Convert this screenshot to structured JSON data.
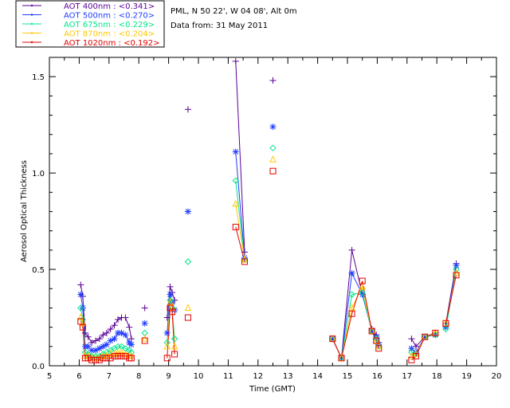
{
  "header": {
    "site": "PML, N 50 22', W 04 08', Alt 0m",
    "date": "Data from: 31 May 2011"
  },
  "chart_data": {
    "type": "scatter",
    "xlabel": "Time (GMT)",
    "ylabel": "Aerosol Optical Thickness",
    "xlim": [
      5,
      20
    ],
    "ylim": [
      0,
      1.6
    ],
    "xticks": [
      "5",
      "6",
      "7",
      "8",
      "9",
      "10",
      "11",
      "12",
      "13",
      "14",
      "15",
      "16",
      "17",
      "18",
      "19",
      "20"
    ],
    "yticks": [
      "0.0",
      "0.5",
      "1.0",
      "1.5"
    ],
    "grid": false,
    "legend_position": "top-left-outside",
    "series": [
      {
        "name": "AOT 400nm",
        "legend": "AOT  400nm : <0.341>",
        "color": "#5a0096",
        "marker": "plus",
        "x": [
          6.05,
          6.12,
          6.2,
          6.3,
          6.42,
          6.55,
          6.68,
          6.8,
          6.92,
          7.05,
          7.18,
          7.3,
          7.42,
          7.55,
          7.68,
          7.75,
          8.2,
          8.95,
          9.05,
          9.12,
          9.2,
          9.65,
          11.25,
          11.55,
          12.5,
          14.5,
          14.8,
          15.15,
          15.5,
          15.82,
          15.97,
          16.05,
          17.15,
          17.3,
          17.6,
          17.95,
          18.3,
          18.65
        ],
        "y": [
          0.42,
          0.36,
          0.17,
          0.15,
          0.12,
          0.13,
          0.14,
          0.16,
          0.17,
          0.19,
          0.21,
          0.24,
          0.25,
          0.25,
          0.2,
          0.14,
          0.3,
          0.25,
          0.41,
          0.38,
          0.34,
          1.33,
          1.58,
          0.59,
          1.48,
          0.14,
          0.04,
          0.6,
          0.37,
          0.19,
          0.16,
          0.12,
          0.14,
          0.1,
          0.15,
          0.17,
          0.22,
          0.53
        ]
      },
      {
        "name": "AOT 500nm",
        "legend": "AOT  500nm : <0.270>",
        "color": "#1e3cff",
        "marker": "asterisk",
        "x": [
          6.05,
          6.12,
          6.2,
          6.3,
          6.42,
          6.55,
          6.68,
          6.8,
          6.92,
          7.05,
          7.18,
          7.3,
          7.42,
          7.55,
          7.68,
          7.75,
          8.2,
          8.95,
          9.05,
          9.12,
          9.2,
          9.65,
          11.25,
          11.55,
          12.5,
          14.5,
          14.8,
          15.15,
          15.5,
          15.82,
          15.97,
          16.05,
          17.15,
          17.3,
          17.6,
          17.95,
          18.3,
          18.65
        ],
        "y": [
          0.37,
          0.3,
          0.1,
          0.1,
          0.08,
          0.08,
          0.09,
          0.1,
          0.11,
          0.13,
          0.14,
          0.17,
          0.17,
          0.16,
          0.12,
          0.11,
          0.22,
          0.17,
          0.37,
          0.33,
          0.29,
          0.8,
          1.11,
          0.56,
          1.24,
          0.14,
          0.04,
          0.48,
          0.37,
          0.18,
          0.15,
          0.11,
          0.09,
          0.07,
          0.15,
          0.16,
          0.2,
          0.52
        ]
      },
      {
        "name": "AOT 675nm",
        "legend": "AOT  675nm : <0.229>",
        "color": "#00e68c",
        "marker": "diamond",
        "x": [
          6.05,
          6.12,
          6.2,
          6.3,
          6.42,
          6.55,
          6.68,
          6.8,
          6.92,
          7.05,
          7.18,
          7.3,
          7.42,
          7.55,
          7.68,
          7.75,
          8.2,
          8.95,
          9.05,
          9.12,
          9.2,
          9.65,
          11.25,
          11.55,
          12.5,
          14.5,
          14.8,
          15.15,
          15.5,
          15.82,
          15.97,
          16.05,
          17.15,
          17.3,
          17.6,
          17.95,
          18.3,
          18.65
        ],
        "y": [
          0.3,
          0.24,
          0.07,
          0.06,
          0.05,
          0.05,
          0.05,
          0.06,
          0.07,
          0.08,
          0.09,
          0.1,
          0.1,
          0.09,
          0.08,
          0.07,
          0.17,
          0.12,
          0.34,
          0.3,
          0.14,
          0.54,
          0.96,
          0.55,
          1.13,
          0.14,
          0.04,
          0.37,
          0.38,
          0.18,
          0.14,
          0.1,
          0.07,
          0.06,
          0.15,
          0.16,
          0.19,
          0.5
        ]
      },
      {
        "name": "AOT 870nm",
        "legend": "AOT  870nm : <0.204>",
        "color": "#ffc800",
        "marker": "triangle",
        "x": [
          6.05,
          6.12,
          6.2,
          6.3,
          6.42,
          6.55,
          6.68,
          6.8,
          6.92,
          7.05,
          7.18,
          7.3,
          7.42,
          7.55,
          7.68,
          7.75,
          8.2,
          8.95,
          9.05,
          9.12,
          9.2,
          9.65,
          11.25,
          11.55,
          12.5,
          14.5,
          14.8,
          15.15,
          15.5,
          15.82,
          15.97,
          16.05,
          17.15,
          17.3,
          17.6,
          17.95,
          18.3,
          18.65
        ],
        "y": [
          0.25,
          0.22,
          0.05,
          0.05,
          0.04,
          0.04,
          0.04,
          0.05,
          0.05,
          0.06,
          0.06,
          0.07,
          0.07,
          0.06,
          0.05,
          0.05,
          0.14,
          0.1,
          0.33,
          0.3,
          0.1,
          0.3,
          0.84,
          0.55,
          1.07,
          0.14,
          0.04,
          0.3,
          0.41,
          0.18,
          0.13,
          0.1,
          0.05,
          0.06,
          0.15,
          0.17,
          0.22,
          0.48
        ]
      },
      {
        "name": "AOT 1020nm",
        "legend": "AOT 1020nm : <0.192>",
        "color": "#e60000",
        "marker": "square",
        "x": [
          6.05,
          6.12,
          6.2,
          6.3,
          6.42,
          6.55,
          6.68,
          6.8,
          6.92,
          7.05,
          7.18,
          7.3,
          7.42,
          7.55,
          7.68,
          7.75,
          8.2,
          8.95,
          9.05,
          9.12,
          9.2,
          9.65,
          11.25,
          11.55,
          12.5,
          14.5,
          14.8,
          15.15,
          15.5,
          15.82,
          15.97,
          16.05,
          17.15,
          17.3,
          17.6,
          17.95,
          18.3,
          18.65
        ],
        "y": [
          0.23,
          0.2,
          0.04,
          0.04,
          0.03,
          0.03,
          0.03,
          0.04,
          0.04,
          0.04,
          0.05,
          0.05,
          0.05,
          0.05,
          0.04,
          0.04,
          0.13,
          0.04,
          0.3,
          0.28,
          0.06,
          0.25,
          0.72,
          0.54,
          1.01,
          0.14,
          0.04,
          0.27,
          0.44,
          0.18,
          0.13,
          0.09,
          0.03,
          0.05,
          0.15,
          0.17,
          0.22,
          0.47
        ]
      }
    ]
  }
}
